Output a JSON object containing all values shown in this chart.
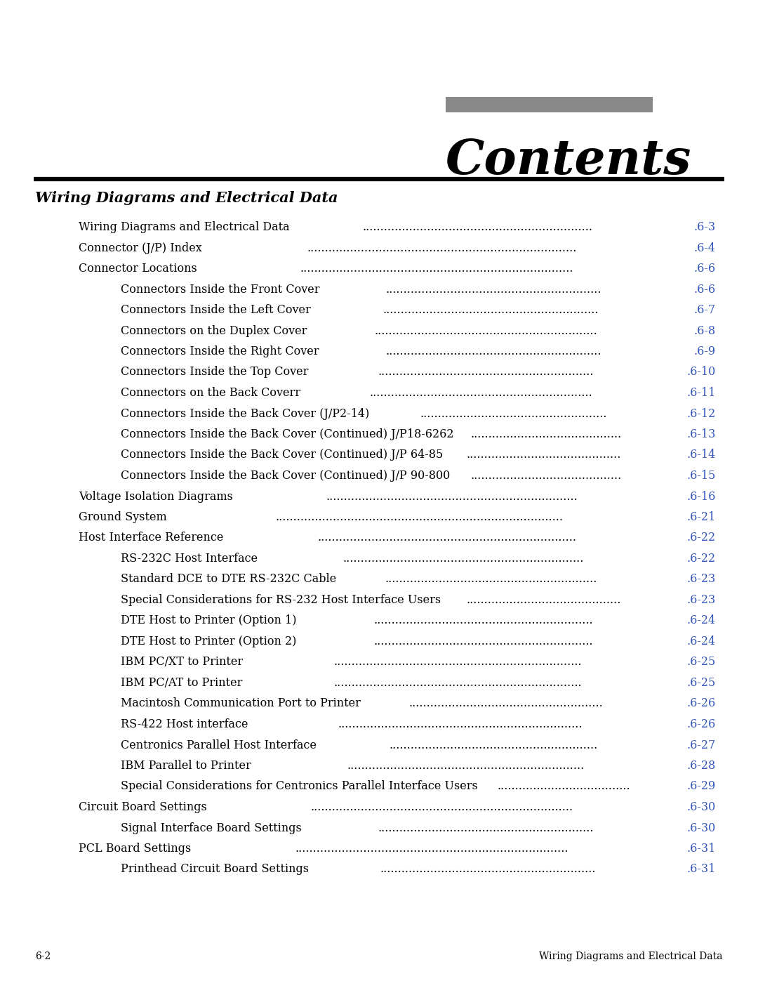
{
  "title": "Contents",
  "section_header": "Wiring Diagrams and Electrical Data",
  "gray_bar_color": "#888888",
  "header_line_color": "#000000",
  "background_color": "#ffffff",
  "text_color": "#000000",
  "page_num_color": "#3355bb",
  "footer_left": "6-2",
  "footer_right": "Wiring Diagrams and Electrical Data",
  "entries": [
    {
      "text": "Wiring Diagrams and Electrical Data",
      "page": ".6-3",
      "indent": 1
    },
    {
      "text": "Connector (J/P) Index",
      "page": ".6-4",
      "indent": 1
    },
    {
      "text": "Connector Locations",
      "page": ".6-6",
      "indent": 1
    },
    {
      "text": "Connectors Inside the Front Cover",
      "page": ".6-6",
      "indent": 2
    },
    {
      "text": "Connectors Inside the Left Cover",
      "page": ".6-7",
      "indent": 2
    },
    {
      "text": "Connectors on the Duplex Cover",
      "page": ".6-8",
      "indent": 2
    },
    {
      "text": "Connectors Inside the Right Cover",
      "page": ".6-9",
      "indent": 2
    },
    {
      "text": "Connectors Inside the Top Cover",
      "page": ".6-10",
      "indent": 2
    },
    {
      "text": "Connectors on the Back Coverr",
      "page": ".6-11",
      "indent": 2
    },
    {
      "text": "Connectors Inside the Back Cover (J/P2-14)",
      "page": ".6-12",
      "indent": 2
    },
    {
      "text": "Connectors Inside the Back Cover (Continued) J/P18-6262",
      "page": ".6-13",
      "indent": 2
    },
    {
      "text": "Connectors Inside the Back Cover (Continued) J/P 64-85",
      "page": ".6-14",
      "indent": 2
    },
    {
      "text": "Connectors Inside the Back Cover (Continued) J/P 90-800",
      "page": ".6-15",
      "indent": 2
    },
    {
      "text": "Voltage Isolation Diagrams",
      "page": ".6-16",
      "indent": 1
    },
    {
      "text": "Ground System",
      "page": ".6-21",
      "indent": 1
    },
    {
      "text": "Host Interface Reference",
      "page": ".6-22",
      "indent": 1
    },
    {
      "text": "RS-232C Host Interface",
      "page": ".6-22",
      "indent": 2
    },
    {
      "text": "Standard DCE to DTE RS-232C Cable",
      "page": ".6-23",
      "indent": 2
    },
    {
      "text": "Special Considerations for RS-232 Host Interface Users",
      "page": ".6-23",
      "indent": 2
    },
    {
      "text": "DTE Host to Printer (Option 1)",
      "page": ".6-24",
      "indent": 2
    },
    {
      "text": "DTE Host to Printer (Option 2)",
      "page": ".6-24",
      "indent": 2
    },
    {
      "text": "IBM PC/XT to Printer",
      "page": ".6-25",
      "indent": 2
    },
    {
      "text": "IBM PC/AT to Printer",
      "page": ".6-25",
      "indent": 2
    },
    {
      "text": "Macintosh Communication Port to Printer",
      "page": ".6-26",
      "indent": 2
    },
    {
      "text": "RS-422 Host interface",
      "page": ".6-26",
      "indent": 2
    },
    {
      "text": "Centronics Parallel Host Interface",
      "page": ".6-27",
      "indent": 2
    },
    {
      "text": "IBM Parallel to Printer",
      "page": ".6-28",
      "indent": 2
    },
    {
      "text": "Special Considerations for Centronics Parallel Interface Users",
      "page": ".6-29",
      "indent": 2
    },
    {
      "text": "Circuit Board Settings",
      "page": ".6-30",
      "indent": 1
    },
    {
      "text": "Signal Interface Board Settings",
      "page": ".6-30",
      "indent": 2
    },
    {
      "text": "PCL Board Settings",
      "page": ".6-31",
      "indent": 1
    },
    {
      "text": "Printhead Circuit Board Settings",
      "page": ".6-31",
      "indent": 2
    }
  ]
}
